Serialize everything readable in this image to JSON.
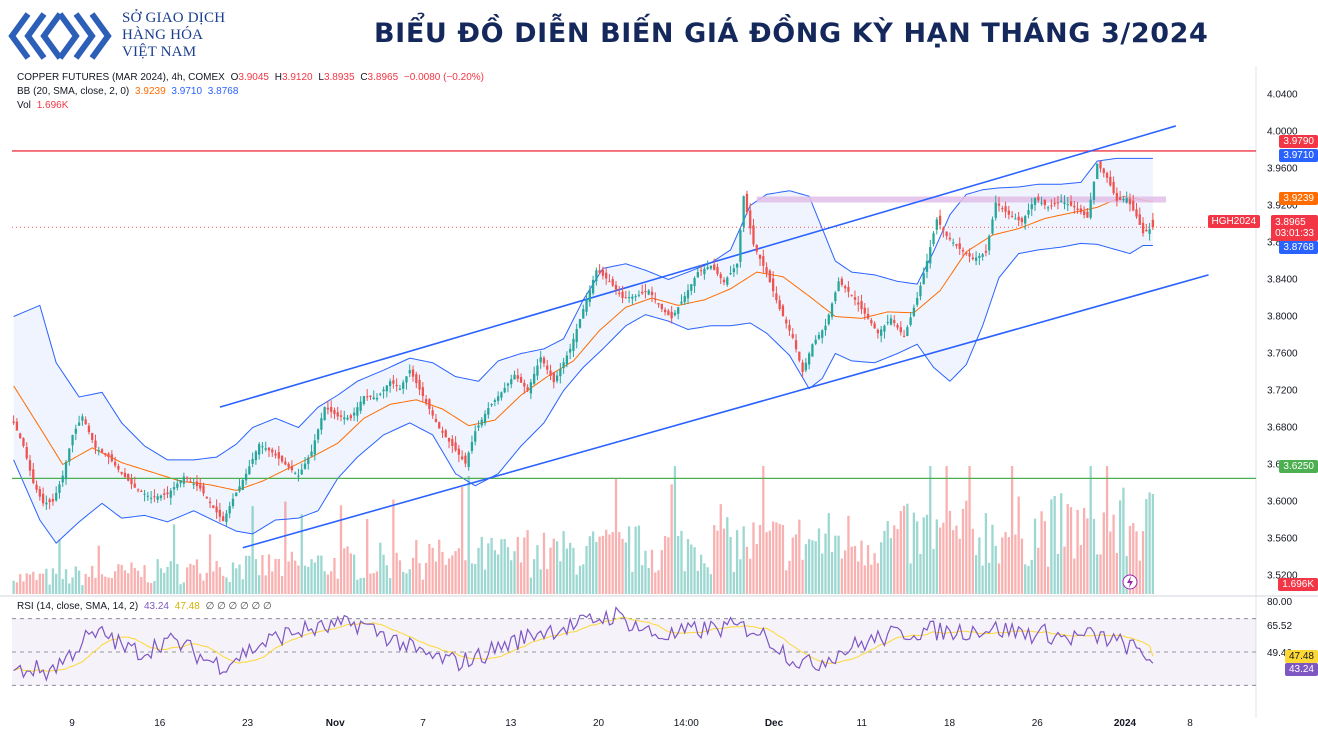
{
  "header": {
    "logo_lines": [
      "SỞ GIAO DỊCH",
      "HÀNG HÓA",
      "VIỆT NAM"
    ],
    "title": "BIỂU ĐỒ DIỄN BIẾN GIÁ ĐỒNG KỲ HẠN THÁNG 3/2024"
  },
  "legend": {
    "symbol": "COPPER FUTURES (MAR 2024), 4h, COMEX",
    "ohlc": {
      "o_label": "O",
      "o": "3.9045",
      "h_label": "H",
      "h": "3.9120",
      "l_label": "L",
      "l": "3.8935",
      "c_label": "C",
      "c": "3.8965",
      "chg": "−0.0080 (−0.20%)"
    },
    "bb_label": "BB (20, SMA, close, 2, 0)",
    "bb_values": [
      "3.9239",
      "3.9710",
      "3.8768"
    ],
    "vol_label": "Vol",
    "vol_value": "1.696K",
    "rsi_label": "RSI (14, close, SMA, 14, 2)",
    "rsi_values": [
      "43.24",
      "47.48"
    ],
    "rsi_empty": "∅ ∅ ∅ ∅ ∅ ∅"
  },
  "price_labels": {
    "resistance": "3.9790",
    "bb_upper": "3.9710",
    "bb_mid": "3.9239",
    "symbol_tag": "HGH2024",
    "last": "3.8965",
    "countdown": "03:01:33",
    "bb_lower": "3.8768",
    "support": "3.6250",
    "volume": "1.696K",
    "rsi_ma": "47.48",
    "rsi": "43.24"
  },
  "colors": {
    "up": "#26a69a",
    "down": "#ef5350",
    "bb_band": "#2962ff",
    "bb_basis": "#ff6d00",
    "channel": "#2962ff",
    "resistance": "#f23645",
    "support": "#4caf50",
    "rsi": "#7e57c2",
    "rsi_ma": "#fdd835",
    "zone": "#e1bee7"
  },
  "chart_data": {
    "type": "candlestick",
    "title": "COPPER FUTURES (MAR 2024), 4h, COMEX",
    "x_ticks": [
      "9",
      "16",
      "23",
      "Nov",
      "7",
      "13",
      "20",
      "14:00",
      "Dec",
      "11",
      "18",
      "26",
      "2024",
      "8"
    ],
    "price_axis": [
      "4.0400",
      "4.0000",
      "3.9600",
      "3.9200",
      "3.8800",
      "3.8400",
      "3.8000",
      "3.7600",
      "3.7200",
      "3.6800",
      "3.6400",
      "3.6000",
      "3.5600",
      "3.5200"
    ],
    "ylim": [
      3.5,
      4.06
    ],
    "last_ohlc": {
      "open": 3.9045,
      "high": 3.912,
      "low": 3.8935,
      "close": 3.8965
    },
    "bollinger": {
      "basis": 3.9239,
      "upper": 3.971,
      "lower": 3.8768
    },
    "horizontal_levels": [
      {
        "name": "resistance",
        "price": 3.979
      },
      {
        "name": "support",
        "price": 3.625
      },
      {
        "name": "zone",
        "price": 3.9265
      }
    ],
    "close_path": [
      [
        0,
        3.685
      ],
      [
        3,
        3.66
      ],
      [
        6,
        3.62
      ],
      [
        9,
        3.598
      ],
      [
        12,
        3.6
      ],
      [
        15,
        3.628
      ],
      [
        18,
        3.672
      ],
      [
        21,
        3.692
      ],
      [
        25,
        3.658
      ],
      [
        29,
        3.648
      ],
      [
        33,
        3.63
      ],
      [
        37,
        3.615
      ],
      [
        42,
        3.604
      ],
      [
        47,
        3.608
      ],
      [
        52,
        3.627
      ],
      [
        57,
        3.614
      ],
      [
        61,
        3.593
      ],
      [
        64,
        3.579
      ],
      [
        67,
        3.603
      ],
      [
        71,
        3.63
      ],
      [
        75,
        3.662
      ],
      [
        79,
        3.653
      ],
      [
        83,
        3.64
      ],
      [
        87,
        3.628
      ],
      [
        91,
        3.654
      ],
      [
        95,
        3.702
      ],
      [
        99,
        3.692
      ],
      [
        103,
        3.69
      ],
      [
        107,
        3.714
      ],
      [
        111,
        3.712
      ],
      [
        115,
        3.73
      ],
      [
        118,
        3.722
      ],
      [
        121,
        3.742
      ],
      [
        124,
        3.721
      ],
      [
        127,
        3.7
      ],
      [
        130,
        3.679
      ],
      [
        134,
        3.66
      ],
      [
        138,
        3.641
      ],
      [
        141,
        3.676
      ],
      [
        145,
        3.701
      ],
      [
        149,
        3.718
      ],
      [
        153,
        3.737
      ],
      [
        157,
        3.72
      ],
      [
        161,
        3.756
      ],
      [
        165,
        3.729
      ],
      [
        170,
        3.765
      ],
      [
        174,
        3.808
      ],
      [
        178,
        3.85
      ],
      [
        182,
        3.838
      ],
      [
        186,
        3.82
      ],
      [
        190,
        3.822
      ],
      [
        194,
        3.828
      ],
      [
        198,
        3.808
      ],
      [
        201,
        3.798
      ],
      [
        205,
        3.822
      ],
      [
        209,
        3.848
      ],
      [
        213,
        3.855
      ],
      [
        217,
        3.837
      ],
      [
        221,
        3.857
      ],
      [
        223,
        3.93
      ],
      [
        226,
        3.878
      ],
      [
        230,
        3.847
      ],
      [
        234,
        3.808
      ],
      [
        238,
        3.777
      ],
      [
        241,
        3.74
      ],
      [
        244,
        3.77
      ],
      [
        248,
        3.79
      ],
      [
        252,
        3.838
      ],
      [
        256,
        3.823
      ],
      [
        260,
        3.803
      ],
      [
        264,
        3.782
      ],
      [
        268,
        3.798
      ],
      [
        272,
        3.778
      ],
      [
        276,
        3.82
      ],
      [
        279,
        3.86
      ],
      [
        282,
        3.905
      ],
      [
        285,
        3.887
      ],
      [
        289,
        3.873
      ],
      [
        293,
        3.862
      ],
      [
        297,
        3.869
      ],
      [
        300,
        3.923
      ],
      [
        304,
        3.91
      ],
      [
        308,
        3.902
      ],
      [
        312,
        3.928
      ],
      [
        316,
        3.918
      ],
      [
        320,
        3.925
      ],
      [
        324,
        3.918
      ],
      [
        328,
        3.907
      ],
      [
        331,
        3.965
      ],
      [
        334,
        3.95
      ],
      [
        337,
        3.925
      ],
      [
        340,
        3.928
      ],
      [
        343,
        3.908
      ],
      [
        345,
        3.89
      ],
      [
        348,
        3.8965
      ]
    ],
    "bb_upper_path": [
      [
        0,
        3.8
      ],
      [
        8,
        3.812
      ],
      [
        13,
        3.75
      ],
      [
        20,
        3.713
      ],
      [
        27,
        3.718
      ],
      [
        33,
        3.685
      ],
      [
        40,
        3.66
      ],
      [
        47,
        3.645
      ],
      [
        55,
        3.645
      ],
      [
        62,
        3.648
      ],
      [
        68,
        3.662
      ],
      [
        73,
        3.68
      ],
      [
        80,
        3.69
      ],
      [
        87,
        3.68
      ],
      [
        93,
        3.702
      ],
      [
        99,
        3.715
      ],
      [
        105,
        3.73
      ],
      [
        113,
        3.742
      ],
      [
        121,
        3.755
      ],
      [
        128,
        3.75
      ],
      [
        135,
        3.735
      ],
      [
        142,
        3.73
      ],
      [
        148,
        3.752
      ],
      [
        155,
        3.76
      ],
      [
        162,
        3.765
      ],
      [
        168,
        3.776
      ],
      [
        174,
        3.818
      ],
      [
        180,
        3.852
      ],
      [
        187,
        3.857
      ],
      [
        193,
        3.85
      ],
      [
        200,
        3.84
      ],
      [
        206,
        3.848
      ],
      [
        213,
        3.858
      ],
      [
        219,
        3.872
      ],
      [
        225,
        3.92
      ],
      [
        230,
        3.932
      ],
      [
        237,
        3.936
      ],
      [
        243,
        3.93
      ],
      [
        247,
        3.895
      ],
      [
        251,
        3.86
      ],
      [
        256,
        3.848
      ],
      [
        263,
        3.845
      ],
      [
        270,
        3.838
      ],
      [
        276,
        3.835
      ],
      [
        281,
        3.87
      ],
      [
        286,
        3.91
      ],
      [
        291,
        3.932
      ],
      [
        296,
        3.937
      ],
      [
        301,
        3.939
      ],
      [
        307,
        3.94
      ],
      [
        313,
        3.943
      ],
      [
        320,
        3.943
      ],
      [
        326,
        3.945
      ],
      [
        331,
        3.968
      ],
      [
        337,
        3.971
      ],
      [
        341,
        3.971
      ],
      [
        345,
        3.971
      ],
      [
        348,
        3.971
      ]
    ],
    "bb_basis_path": [
      [
        0,
        3.725
      ],
      [
        8,
        3.68
      ],
      [
        15,
        3.64
      ],
      [
        24,
        3.658
      ],
      [
        33,
        3.642
      ],
      [
        42,
        3.632
      ],
      [
        51,
        3.622
      ],
      [
        60,
        3.618
      ],
      [
        68,
        3.612
      ],
      [
        76,
        3.622
      ],
      [
        84,
        3.636
      ],
      [
        91,
        3.648
      ],
      [
        99,
        3.663
      ],
      [
        107,
        3.69
      ],
      [
        115,
        3.705
      ],
      [
        123,
        3.71
      ],
      [
        131,
        3.7
      ],
      [
        139,
        3.682
      ],
      [
        147,
        3.688
      ],
      [
        155,
        3.715
      ],
      [
        163,
        3.735
      ],
      [
        171,
        3.752
      ],
      [
        179,
        3.785
      ],
      [
        187,
        3.81
      ],
      [
        195,
        3.82
      ],
      [
        203,
        3.812
      ],
      [
        211,
        3.818
      ],
      [
        219,
        3.83
      ],
      [
        227,
        3.848
      ],
      [
        235,
        3.843
      ],
      [
        243,
        3.822
      ],
      [
        251,
        3.8
      ],
      [
        259,
        3.798
      ],
      [
        267,
        3.805
      ],
      [
        275,
        3.804
      ],
      [
        283,
        3.828
      ],
      [
        291,
        3.87
      ],
      [
        299,
        3.888
      ],
      [
        307,
        3.895
      ],
      [
        315,
        3.906
      ],
      [
        323,
        3.912
      ],
      [
        331,
        3.918
      ],
      [
        339,
        3.93
      ],
      [
        348,
        3.9239
      ]
    ],
    "bb_lower_path": [
      [
        0,
        3.645
      ],
      [
        8,
        3.58
      ],
      [
        13,
        3.555
      ],
      [
        20,
        3.578
      ],
      [
        27,
        3.598
      ],
      [
        33,
        3.582
      ],
      [
        40,
        3.585
      ],
      [
        47,
        3.578
      ],
      [
        55,
        3.59
      ],
      [
        62,
        3.578
      ],
      [
        68,
        3.568
      ],
      [
        73,
        3.565
      ],
      [
        80,
        3.58
      ],
      [
        87,
        3.582
      ],
      [
        93,
        3.59
      ],
      [
        99,
        3.625
      ],
      [
        105,
        3.648
      ],
      [
        113,
        3.672
      ],
      [
        121,
        3.685
      ],
      [
        128,
        3.672
      ],
      [
        135,
        3.63
      ],
      [
        141,
        3.617
      ],
      [
        148,
        3.63
      ],
      [
        155,
        3.66
      ],
      [
        162,
        3.685
      ],
      [
        168,
        3.72
      ],
      [
        174,
        3.745
      ],
      [
        180,
        3.765
      ],
      [
        187,
        3.79
      ],
      [
        193,
        3.802
      ],
      [
        200,
        3.795
      ],
      [
        206,
        3.786
      ],
      [
        213,
        3.79
      ],
      [
        219,
        3.79
      ],
      [
        225,
        3.793
      ],
      [
        230,
        3.782
      ],
      [
        237,
        3.758
      ],
      [
        243,
        3.722
      ],
      [
        247,
        3.733
      ],
      [
        251,
        3.76
      ],
      [
        256,
        3.752
      ],
      [
        263,
        3.75
      ],
      [
        270,
        3.76
      ],
      [
        276,
        3.77
      ],
      [
        281,
        3.745
      ],
      [
        286,
        3.73
      ],
      [
        291,
        3.748
      ],
      [
        296,
        3.79
      ],
      [
        301,
        3.842
      ],
      [
        307,
        3.868
      ],
      [
        313,
        3.872
      ],
      [
        320,
        3.875
      ],
      [
        326,
        3.879
      ],
      [
        331,
        3.878
      ],
      [
        337,
        3.872
      ],
      [
        341,
        3.868
      ],
      [
        345,
        3.8768
      ],
      [
        348,
        3.8768
      ]
    ],
    "channel_upper": [
      [
        63,
        3.702
      ],
      [
        355,
        4.006
      ]
    ],
    "channel_lower": [
      [
        70,
        3.55
      ],
      [
        365,
        3.845
      ]
    ],
    "zone_start_bar": 227,
    "zone_end_bar": 352,
    "rsi": {
      "axis": [
        "80.00",
        "65.52",
        "49.40"
      ],
      "value": 43.24,
      "ma": 47.48,
      "bands": [
        70,
        30
      ],
      "path": [
        [
          0,
          38
        ],
        [
          6,
          40
        ],
        [
          10,
          38
        ],
        [
          16,
          46
        ],
        [
          22,
          58
        ],
        [
          28,
          61
        ],
        [
          34,
          52
        ],
        [
          40,
          50
        ],
        [
          46,
          57
        ],
        [
          52,
          54
        ],
        [
          58,
          46
        ],
        [
          64,
          42
        ],
        [
          70,
          49
        ],
        [
          76,
          55
        ],
        [
          82,
          60
        ],
        [
          88,
          63
        ],
        [
          94,
          64
        ],
        [
          100,
          66
        ],
        [
          106,
          67
        ],
        [
          112,
          61
        ],
        [
          118,
          56
        ],
        [
          124,
          49
        ],
        [
          130,
          46
        ],
        [
          136,
          44
        ],
        [
          142,
          47
        ],
        [
          148,
          53
        ],
        [
          154,
          57
        ],
        [
          160,
          62
        ],
        [
          166,
          64
        ],
        [
          172,
          66
        ],
        [
          178,
          70
        ],
        [
          184,
          72
        ],
        [
          190,
          66
        ],
        [
          196,
          60
        ],
        [
          202,
          60
        ],
        [
          208,
          63
        ],
        [
          214,
          64
        ],
        [
          220,
          65
        ],
        [
          226,
          64
        ],
        [
          232,
          56
        ],
        [
          238,
          46
        ],
        [
          244,
          42
        ],
        [
          250,
          48
        ],
        [
          256,
          53
        ],
        [
          262,
          57
        ],
        [
          268,
          60
        ],
        [
          274,
          62
        ],
        [
          280,
          63
        ],
        [
          286,
          62
        ],
        [
          292,
          63
        ],
        [
          298,
          64
        ],
        [
          304,
          63
        ],
        [
          310,
          61
        ],
        [
          316,
          61
        ],
        [
          322,
          58
        ],
        [
          328,
          60
        ],
        [
          334,
          58
        ],
        [
          340,
          54
        ],
        [
          345,
          49
        ],
        [
          348,
          45
        ]
      ]
    }
  }
}
